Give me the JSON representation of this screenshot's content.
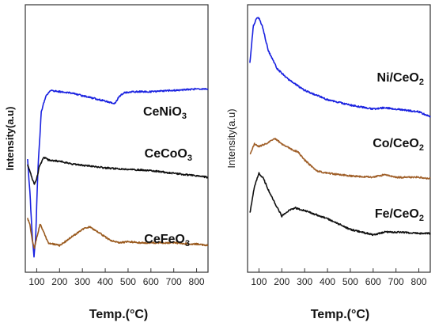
{
  "chart_data": [
    {
      "type": "line",
      "title": "",
      "xlabel": "Temp.(°C)",
      "ylabel": "Intensity(a.u)",
      "xlim": [
        50,
        850
      ],
      "xticks": [
        100,
        200,
        300,
        400,
        500,
        600,
        700,
        800
      ],
      "yticks": "none",
      "grid": false,
      "legend": "none",
      "series": [
        {
          "name": "CeNiO3",
          "label_main": "CeNiO",
          "label_sub": "3",
          "color": "#1a22e0",
          "x": [
            60,
            70,
            80,
            88,
            95,
            105,
            120,
            140,
            160,
            200,
            250,
            300,
            350,
            400,
            440,
            460,
            480,
            520,
            600,
            700,
            800,
            850
          ],
          "y": [
            0.58,
            0.7,
            0.86,
            0.94,
            0.88,
            0.62,
            0.4,
            0.34,
            0.32,
            0.325,
            0.33,
            0.34,
            0.35,
            0.36,
            0.37,
            0.345,
            0.33,
            0.325,
            0.325,
            0.32,
            0.315,
            0.315
          ]
        },
        {
          "name": "CeCoO3",
          "label_main": "CeCoO",
          "label_sub": "3",
          "color": "#111111",
          "x": [
            60,
            70,
            80,
            90,
            100,
            110,
            130,
            150,
            200,
            250,
            300,
            400,
            500,
            600,
            700,
            800,
            850
          ],
          "y": [
            0.6,
            0.62,
            0.65,
            0.67,
            0.65,
            0.61,
            0.57,
            0.58,
            0.585,
            0.595,
            0.6,
            0.61,
            0.615,
            0.62,
            0.63,
            0.64,
            0.645
          ]
        },
        {
          "name": "CeFeO3",
          "label_main": "CeFeO",
          "label_sub": "3",
          "color": "#9a5a1e",
          "x": [
            60,
            70,
            80,
            90,
            100,
            115,
            130,
            150,
            200,
            250,
            300,
            330,
            370,
            420,
            460,
            500,
            550,
            600,
            700,
            800,
            850
          ],
          "y": [
            0.8,
            0.82,
            0.88,
            0.91,
            0.87,
            0.82,
            0.85,
            0.89,
            0.9,
            0.87,
            0.84,
            0.83,
            0.85,
            0.88,
            0.89,
            0.885,
            0.89,
            0.89,
            0.89,
            0.895,
            0.9
          ]
        }
      ]
    },
    {
      "type": "line",
      "title": "",
      "xlabel": "Temp.(°C)",
      "ylabel": "Intensity(a.u)",
      "xlim": [
        50,
        850
      ],
      "xticks": [
        100,
        200,
        300,
        400,
        500,
        600,
        700,
        800
      ],
      "yticks": "none",
      "grid": false,
      "legend": "none",
      "series": [
        {
          "name": "Ni/CeO2",
          "label_main": "Ni/CeO",
          "label_sub": "2",
          "color": "#1a22e0",
          "x": [
            60,
            75,
            90,
            100,
            115,
            140,
            180,
            230,
            300,
            400,
            500,
            600,
            650,
            700,
            800,
            850
          ],
          "y": [
            0.22,
            0.08,
            0.05,
            0.05,
            0.08,
            0.17,
            0.24,
            0.28,
            0.32,
            0.355,
            0.375,
            0.39,
            0.385,
            0.39,
            0.4,
            0.42
          ]
        },
        {
          "name": "Co/CeO2",
          "label_main": "Co/CeO",
          "label_sub": "2",
          "color": "#a0602a",
          "x": [
            60,
            80,
            100,
            130,
            170,
            200,
            240,
            270,
            300,
            350,
            400,
            500,
            600,
            650,
            700,
            800,
            850
          ],
          "y": [
            0.56,
            0.52,
            0.53,
            0.52,
            0.5,
            0.52,
            0.54,
            0.55,
            0.58,
            0.62,
            0.63,
            0.64,
            0.645,
            0.635,
            0.645,
            0.645,
            0.65
          ]
        },
        {
          "name": "Fe/CeO2",
          "label_main": "Fe/CeO",
          "label_sub": "2",
          "color": "#111111",
          "x": [
            60,
            80,
            100,
            120,
            150,
            200,
            230,
            260,
            300,
            400,
            500,
            600,
            650,
            700,
            800,
            850
          ],
          "y": [
            0.78,
            0.68,
            0.63,
            0.65,
            0.71,
            0.79,
            0.77,
            0.76,
            0.77,
            0.8,
            0.84,
            0.86,
            0.85,
            0.85,
            0.855,
            0.855
          ]
        }
      ]
    }
  ]
}
